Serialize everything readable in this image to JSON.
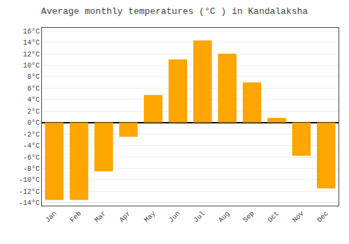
{
  "chart_data": {
    "type": "bar",
    "title": "Average monthly temperatures (°C ) in Kandalaksha",
    "categories": [
      "Jan",
      "Feb",
      "Mar",
      "Apr",
      "May",
      "Jun",
      "Jul",
      "Aug",
      "Sep",
      "Oct",
      "Nov",
      "Dec"
    ],
    "values": [
      -13.5,
      -13.5,
      -8.5,
      -2.5,
      4.8,
      11.0,
      14.3,
      12.0,
      7.0,
      0.8,
      -5.8,
      -11.5
    ],
    "color": "#FFA500",
    "ylim": [
      -14.5,
      16.5
    ],
    "yticks": [
      {
        "value": -14,
        "label": "-14°C"
      },
      {
        "value": -12,
        "label": "-12°C"
      },
      {
        "value": -10,
        "label": "-10°C"
      },
      {
        "value": -8,
        "label": "-8°C"
      },
      {
        "value": -6,
        "label": "-6°C"
      },
      {
        "value": -4,
        "label": "-4°C"
      },
      {
        "value": -2,
        "label": "-2°C"
      },
      {
        "value": 0,
        "label": "0°C"
      },
      {
        "value": 2,
        "label": "2°C"
      },
      {
        "value": 4,
        "label": "4°C"
      },
      {
        "value": 6,
        "label": "6°C"
      },
      {
        "value": 8,
        "label": "8°C"
      },
      {
        "value": 10,
        "label": "10°C"
      },
      {
        "value": 12,
        "label": "12°C"
      },
      {
        "value": 14,
        "label": "14°C"
      },
      {
        "value": 16,
        "label": "16°C"
      }
    ],
    "grid": true
  }
}
